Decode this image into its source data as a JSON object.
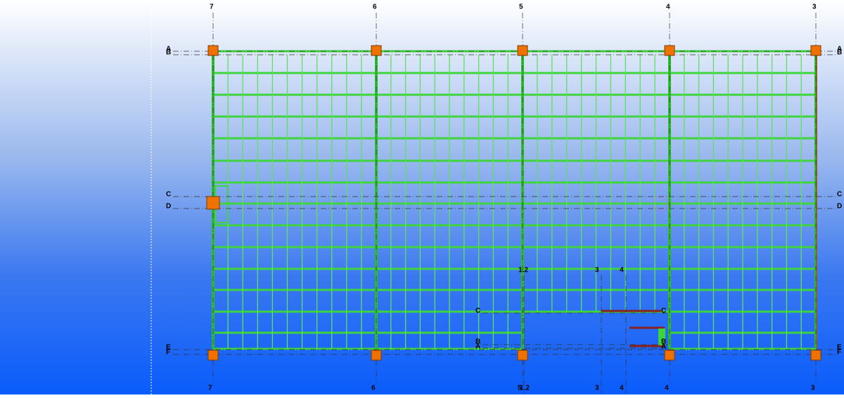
{
  "grid": {
    "columns": [
      "7",
      "6",
      "5",
      "4",
      "3"
    ],
    "rows": [
      "A",
      "B",
      "C",
      "D",
      "E",
      "F"
    ],
    "sub_columns": [
      "1.2",
      "3",
      "4"
    ],
    "sub_rows": [
      "C",
      "B",
      "A"
    ]
  }
}
